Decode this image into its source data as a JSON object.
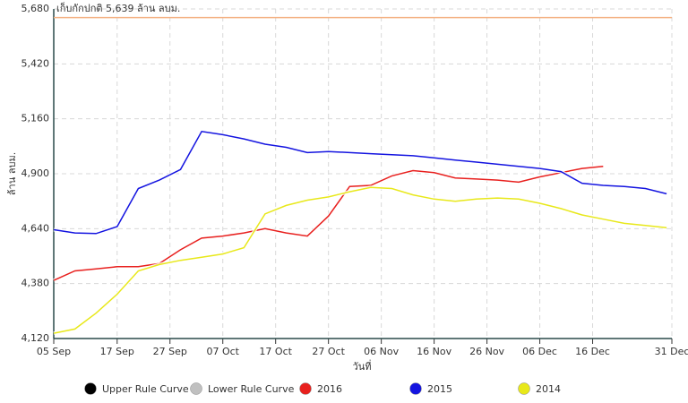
{
  "chart_data": {
    "type": "line",
    "x_label": "วันที่",
    "y_label": "ล้าน ลบม.",
    "annotation": {
      "text": "เก็บกักปกติ 5,639 ล้าน ลบม.",
      "value": 5639,
      "color": "#f4b183"
    },
    "x": [
      0,
      4,
      8,
      12,
      16,
      20,
      24,
      28,
      32,
      36,
      40,
      44,
      48,
      52,
      56,
      60,
      64,
      68,
      72,
      76,
      80,
      84,
      88,
      92,
      96,
      100,
      104,
      108,
      112,
      116
    ],
    "xlim": [
      0,
      117
    ],
    "xticks": [
      {
        "value": 0,
        "label": "05 Sep"
      },
      {
        "value": 12,
        "label": "17 Sep"
      },
      {
        "value": 22,
        "label": "27 Sep"
      },
      {
        "value": 32,
        "label": "07 Oct"
      },
      {
        "value": 42,
        "label": "17 Oct"
      },
      {
        "value": 52,
        "label": "27 Oct"
      },
      {
        "value": 62,
        "label": "06 Nov"
      },
      {
        "value": 72,
        "label": "16 Nov"
      },
      {
        "value": 82,
        "label": "26 Nov"
      },
      {
        "value": 92,
        "label": "06 Dec"
      },
      {
        "value": 102,
        "label": "16 Dec"
      },
      {
        "value": 117,
        "label": "31 Dec"
      }
    ],
    "ylim": [
      4120,
      5680
    ],
    "yticks": [
      {
        "value": 4120,
        "label": "4,120"
      },
      {
        "value": 4380,
        "label": "4,380"
      },
      {
        "value": 4640,
        "label": "4,640"
      },
      {
        "value": 4900,
        "label": "4,900"
      },
      {
        "value": 5160,
        "label": "5,160"
      },
      {
        "value": 5420,
        "label": "5,420"
      },
      {
        "value": 5680,
        "label": "5,680"
      }
    ],
    "grid": true,
    "legend": "bottom",
    "series": [
      {
        "name": "Upper Rule Curve",
        "color": "#000000",
        "values": [
          null,
          null,
          null,
          null,
          null,
          null,
          null,
          null,
          null,
          null,
          null,
          null,
          null,
          null,
          null,
          null,
          null,
          null,
          null,
          null,
          null,
          null,
          null,
          null,
          null,
          null,
          null,
          null,
          null,
          null
        ]
      },
      {
        "name": "Lower Rule Curve",
        "color": "#c0c0c0",
        "values": [
          null,
          null,
          null,
          null,
          null,
          null,
          null,
          null,
          null,
          null,
          null,
          null,
          null,
          null,
          null,
          null,
          null,
          null,
          null,
          null,
          null,
          null,
          null,
          null,
          null,
          null,
          null,
          null,
          null,
          null
        ]
      },
      {
        "name": "2016",
        "color": "#e8201e",
        "values": [
          4395,
          4440,
          4450,
          4460,
          4460,
          4475,
          4540,
          4595,
          4605,
          4620,
          4640,
          4620,
          4605,
          4700,
          4840,
          4845,
          4890,
          4915,
          4905,
          4880,
          4875,
          4870,
          4860,
          4885,
          4905,
          4925,
          4935,
          null,
          null,
          null
        ]
      },
      {
        "name": "2015",
        "color": "#1414e0",
        "values": [
          4635,
          4620,
          4617,
          4650,
          4830,
          4870,
          4920,
          5100,
          5085,
          5065,
          5040,
          5025,
          5000,
          5005,
          5000,
          4995,
          4990,
          4985,
          4975,
          4965,
          4955,
          4945,
          4935,
          4925,
          4910,
          4855,
          4845,
          4840,
          4830,
          4805
        ]
      },
      {
        "name": "2014",
        "color": "#e8e81a",
        "values": [
          4145,
          4165,
          4240,
          4330,
          4440,
          4470,
          4490,
          4505,
          4520,
          4550,
          4710,
          4750,
          4775,
          4790,
          4815,
          4835,
          4830,
          4800,
          4780,
          4770,
          4780,
          4785,
          4780,
          4760,
          4735,
          4705,
          4685,
          4665,
          4655,
          4645
        ]
      }
    ]
  }
}
